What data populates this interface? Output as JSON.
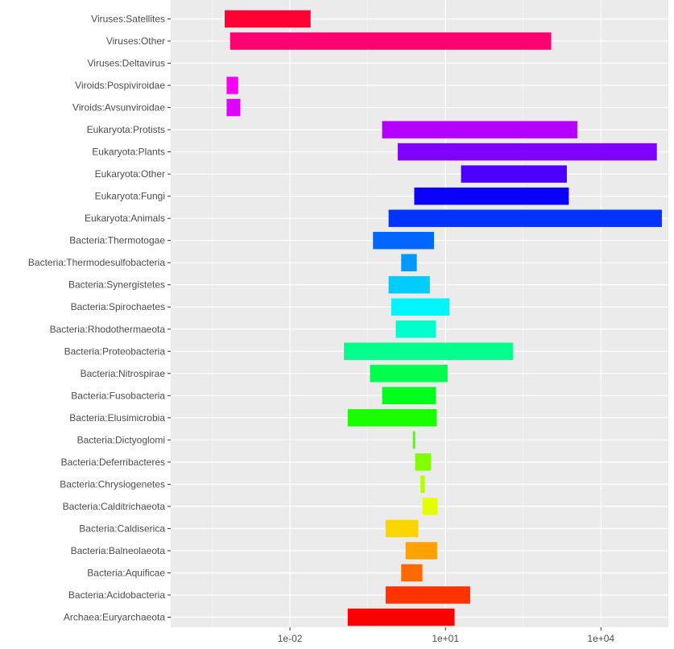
{
  "chart_data": {
    "type": "bar",
    "orientation": "horizontal",
    "subtype": "floating-range",
    "x_scale": "log10",
    "xlim": [
      5e-05,
      200000
    ],
    "x_ticks": [
      0.01,
      10,
      10000
    ],
    "x_tick_labels": [
      "1e-02",
      "1e+01",
      "1e+04"
    ],
    "grid": true,
    "legend": "none",
    "title": "",
    "xlabel": "",
    "ylabel": "",
    "categories": [
      "Viruses:Satellites",
      "Viruses:Other",
      "Viruses:Deltavirus",
      "Viroids:Pospiviroidae",
      "Viroids:Avsunviroidae",
      "Eukaryota:Protists",
      "Eukaryota:Plants",
      "Eukaryota:Other",
      "Eukaryota:Fungi",
      "Eukaryota:Animals",
      "Bacteria:Thermotogae",
      "Bacteria:Thermodesulfobacteria",
      "Bacteria:Synergistetes",
      "Bacteria:Spirochaetes",
      "Bacteria:Rhodothermaeota",
      "Bacteria:Proteobacteria",
      "Bacteria:Nitrospirae",
      "Bacteria:Fusobacteria",
      "Bacteria:Elusimicrobia",
      "Bacteria:Dictyoglomi",
      "Bacteria:Deferribacteres",
      "Bacteria:Chrysiogenetes",
      "Bacteria:Calditrichaeota",
      "Bacteria:Caldiserica",
      "Bacteria:Balneolaeota",
      "Bacteria:Aquificae",
      "Bacteria:Acidobacteria",
      "Archaea:Euryarchaeota"
    ],
    "ranges": [
      [
        0.00055,
        0.025
      ],
      [
        0.0007,
        1100
      ],
      [
        null,
        null
      ],
      [
        0.0006,
        0.001
      ],
      [
        0.0006,
        0.0011
      ],
      [
        0.6,
        3500
      ],
      [
        1.2,
        120000
      ],
      [
        20,
        2200
      ],
      [
        2.5,
        2400
      ],
      [
        0.8,
        150000
      ],
      [
        0.4,
        6
      ],
      [
        1.4,
        2.8
      ],
      [
        0.8,
        5
      ],
      [
        0.9,
        12
      ],
      [
        1.1,
        6.5
      ],
      [
        0.11,
        200
      ],
      [
        0.35,
        11
      ],
      [
        0.6,
        6.5
      ],
      [
        0.13,
        6.8
      ],
      [
        2.35,
        2.6
      ],
      [
        2.6,
        5.2
      ],
      [
        3.3,
        4.0
      ],
      [
        3.6,
        7.0
      ],
      [
        0.7,
        3.0
      ],
      [
        1.7,
        6.9
      ],
      [
        1.4,
        3.6
      ],
      [
        0.7,
        30
      ],
      [
        0.13,
        15
      ]
    ],
    "colors": [
      "#FF0033",
      "#FF0070",
      "#FF00B0",
      "#F500F5",
      "#E000FF",
      "#B300FF",
      "#8000FF",
      "#4D00FF",
      "#0A00FF",
      "#0033FF",
      "#0066FF",
      "#0099FF",
      "#00CCFF",
      "#00F5FF",
      "#00FFCC",
      "#00FF8C",
      "#00FF4D",
      "#00FF1A",
      "#1AFF00",
      "#4DFF00",
      "#80FF00",
      "#B3FF00",
      "#E6FF00",
      "#FFD500",
      "#FFA200",
      "#FF6A00",
      "#FF3300",
      "#FF0000"
    ]
  }
}
